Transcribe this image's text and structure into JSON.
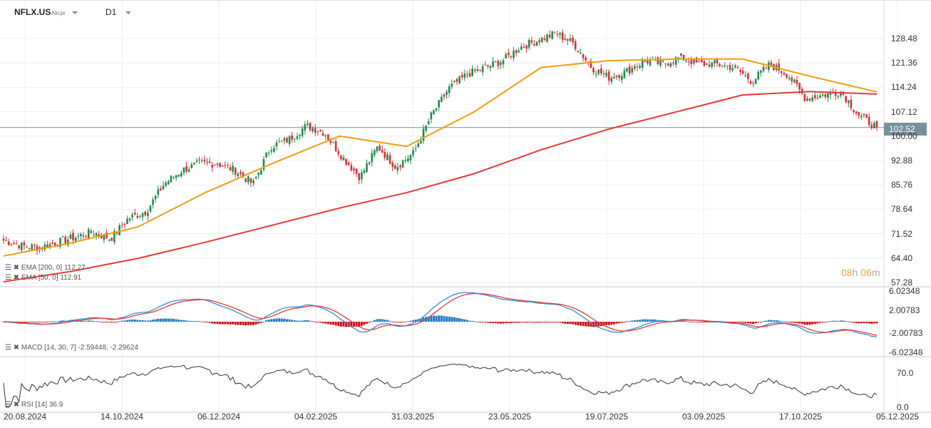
{
  "header": {
    "symbol": "NFLX.US",
    "type": "Akcje",
    "timeframe": "D1"
  },
  "price_tag": "102.52",
  "timer": {
    "hours": "08",
    "h": "h",
    "minutes": "06",
    "m": "m"
  },
  "legends": {
    "ema200": "EMA  [200,  0] 112.27",
    "ema50": "EMA  [50,  0] 112.91",
    "macd": "MACD  [14, 30, 7]  -2.59448,  -2.29624",
    "rsi": "RSI  [14]  36.9"
  },
  "colors": {
    "up": "#1e8a4c",
    "down": "#d32f2f",
    "ema50": "#f39c12",
    "ema200": "#e53935",
    "macd": "#2f8fd8",
    "signal": "#e53935",
    "rsi": "#333333",
    "last": "#78909c"
  },
  "chart_data": {
    "type": "candlestick",
    "price_axis": [
      "128.48",
      "121.36",
      "114.24",
      "107.12",
      "100.00",
      "92.88",
      "85.76",
      "78.64",
      "71.52",
      "64.40",
      "57.28"
    ],
    "ylim": [
      57.28,
      128.48
    ],
    "macd_axis": [
      "6.02348",
      "2.00783",
      "-2.00783",
      "-6.02348"
    ],
    "rsi_axis": [
      "70.0",
      "0.0"
    ],
    "x_labels": [
      "20.08.2024",
      "14.10.2024",
      "06.12.2024",
      "04.02.2025",
      "31.03.2025",
      "23.05.2025",
      "19.07.2025",
      "03.09.2025",
      "17.10.2025",
      "05.12.2025"
    ],
    "approx_close_path": [
      69.5,
      68,
      67.5,
      69,
      70.5,
      72,
      70,
      76,
      78,
      86,
      90,
      92,
      92,
      90,
      86,
      97,
      99,
      103,
      101,
      94,
      88,
      97,
      91,
      95,
      106,
      114,
      118,
      120,
      122,
      126,
      128,
      130,
      127,
      120,
      117,
      119,
      122,
      121,
      123,
      121,
      121,
      120,
      116,
      121,
      118,
      111,
      112,
      113,
      106,
      102.52
    ],
    "ema50_path": [
      65,
      68.8,
      73.5,
      83.5,
      92,
      100,
      97,
      107,
      120,
      122,
      122.5,
      122.5,
      117.5,
      112.91
    ],
    "ema200_path": [
      57.5,
      60.5,
      64.3,
      69,
      74,
      79,
      83.5,
      89,
      96,
      102,
      107,
      112,
      113,
      112.27
    ],
    "last_price": 102.52
  }
}
